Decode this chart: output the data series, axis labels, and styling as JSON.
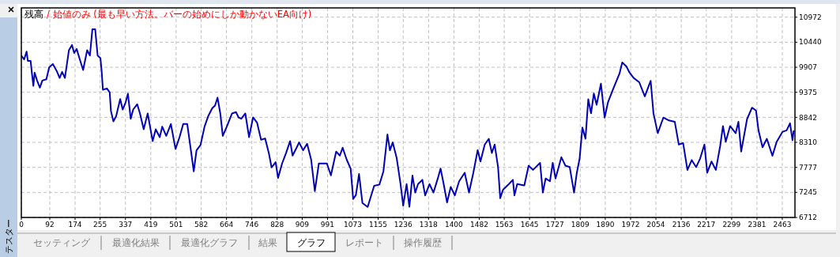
{
  "chart_data": {
    "type": "line",
    "title": "残高",
    "subtitle": "/ 始値のみ (最も早い方法。バーの始めにしか動かないEA向け)",
    "annotations": [
      "テスター",
      "セッティング",
      "最適化結果",
      "最適化グラフ",
      "結果",
      "グラフ",
      "レポート",
      "操作履歴"
    ],
    "xlim": [
      0,
      2504
    ],
    "ylim": [
      6712,
      11169
    ],
    "xticks": [
      0,
      92,
      174,
      255,
      337,
      419,
      501,
      582,
      664,
      746,
      828,
      909,
      991,
      1073,
      1155,
      1236,
      1318,
      1400,
      1482,
      1563,
      1645,
      1727,
      1809,
      1890,
      1972,
      2054,
      2136,
      2217,
      2299,
      2381,
      2463
    ],
    "yticks": [
      6712,
      7245,
      7777,
      8310,
      8842,
      9375,
      9907,
      10440,
      10972
    ],
    "grid": true,
    "line_style": "solid",
    "series": [
      {
        "color": "#0000b4",
        "x": [
          0,
          9,
          17,
          21,
          30,
          34,
          39,
          43,
          51,
          60,
          68,
          81,
          90,
          102,
          115,
          124,
          132,
          141,
          154,
          164,
          171,
          179,
          188,
          200,
          213,
          222,
          230,
          239,
          247,
          256,
          260,
          264,
          277,
          286,
          290,
          298,
          307,
          320,
          328,
          337,
          345,
          354,
          362,
          375,
          384,
          396,
          409,
          425,
          435,
          448,
          456,
          469,
          484,
          499,
          512,
          524,
          537,
          550,
          558,
          567,
          580,
          593,
          605,
          618,
          627,
          635,
          644,
          652,
          665,
          682,
          695,
          703,
          712,
          725,
          737,
          750,
          763,
          776,
          789,
          801,
          810,
          823,
          831,
          844,
          857,
          870,
          878,
          891,
          899,
          912,
          925,
          938,
          950,
          963,
          989,
          1002,
          1019,
          1031,
          1040,
          1053,
          1066,
          1074,
          1083,
          1093,
          1104,
          1121,
          1142,
          1159,
          1172,
          1185,
          1193,
          1202,
          1215,
          1227,
          1236,
          1247,
          1256,
          1266,
          1275,
          1284,
          1298,
          1307,
          1321,
          1334,
          1348,
          1357,
          1367,
          1378,
          1390,
          1403,
          1417,
          1435,
          1449,
          1463,
          1477,
          1486,
          1500,
          1513,
          1523,
          1532,
          1543,
          1550,
          1559,
          1578,
          1591,
          1596,
          1605,
          1628,
          1642,
          1656,
          1679,
          1688,
          1697,
          1711,
          1720,
          1729,
          1748,
          1761,
          1775,
          1789,
          1798,
          1807,
          1816,
          1826,
          1835,
          1844,
          1853,
          1862,
          1876,
          1888,
          1899,
          1917,
          1936,
          1945,
          1959,
          1968,
          1982,
          2000,
          2018,
          2037,
          2046,
          2060,
          2078,
          2096,
          2115,
          2128,
          2142,
          2156,
          2170,
          2184,
          2197,
          2211,
          2220,
          2234,
          2248,
          2262,
          2271,
          2280,
          2294,
          2312,
          2321,
          2330,
          2349,
          2365,
          2378,
          2386,
          2399,
          2413,
          2431,
          2445,
          2464,
          2477,
          2488,
          2496,
          2500
        ],
        "values": [
          10156,
          10072,
          10240,
          10044,
          10044,
          9792,
          9512,
          9792,
          9624,
          9473,
          9624,
          9652,
          9904,
          9977,
          9820,
          9680,
          9809,
          9680,
          10268,
          10380,
          10212,
          10296,
          10100,
          9848,
          10268,
          10156,
          10716,
          10716,
          10156,
          10100,
          9820,
          9428,
          9456,
          9372,
          8980,
          8756,
          8868,
          9232,
          9008,
          9148,
          9344,
          8812,
          9008,
          9120,
          8924,
          8588,
          8924,
          8336,
          8588,
          8420,
          8644,
          8448,
          8700,
          8168,
          8420,
          8700,
          8700,
          8084,
          7692,
          8140,
          8252,
          8644,
          8868,
          9036,
          9092,
          9260,
          8924,
          8448,
          8644,
          8924,
          8952,
          8840,
          8812,
          8924,
          8420,
          8840,
          8728,
          8364,
          8392,
          8084,
          7776,
          7888,
          7552,
          7860,
          8084,
          8336,
          8028,
          8196,
          8308,
          8140,
          8280,
          7944,
          7272,
          7860,
          7860,
          7608,
          8112,
          8028,
          8196,
          7944,
          7748,
          7104,
          7188,
          7636,
          7020,
          6936,
          7384,
          7412,
          7692,
          8476,
          8140,
          8308,
          7972,
          7440,
          6964,
          7422,
          6940,
          7602,
          7241,
          7422,
          7512,
          7181,
          7422,
          7241,
          7542,
          7753,
          7422,
          7031,
          7362,
          7181,
          7482,
          7663,
          7241,
          7663,
          8144,
          7903,
          8264,
          8385,
          8084,
          8264,
          7782,
          7121,
          7301,
          7422,
          7512,
          7181,
          7422,
          7392,
          7813,
          7723,
          7873,
          7241,
          7542,
          7482,
          7873,
          7542,
          7993,
          7813,
          7783,
          7241,
          7663,
          7964,
          8626,
          8385,
          9227,
          8926,
          9347,
          9107,
          9558,
          8836,
          9167,
          9468,
          9769,
          10009,
          9919,
          9799,
          9678,
          9588,
          9287,
          9618,
          8926,
          8505,
          8836,
          8776,
          8746,
          8264,
          8294,
          7723,
          7933,
          7783,
          7964,
          8264,
          7663,
          7903,
          7723,
          8234,
          8656,
          8324,
          8656,
          8505,
          8746,
          8114,
          8806,
          9047,
          8986,
          8565,
          8204,
          8385,
          8024,
          8324,
          8535,
          8565,
          8716,
          8355,
          8565
        ]
      }
    ]
  }
}
